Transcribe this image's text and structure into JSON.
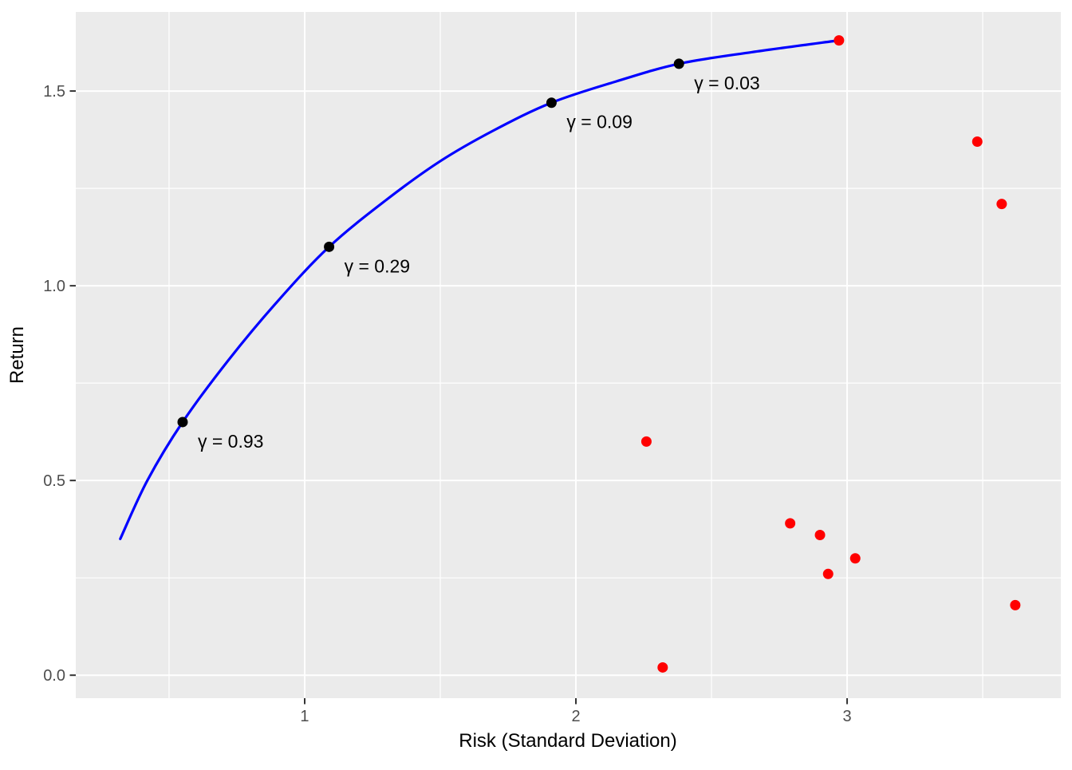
{
  "chart_data": {
    "type": "line+scatter",
    "title": "",
    "xlabel": "Risk (Standard Deviation)",
    "ylabel": "Return",
    "xlim": [
      0.156,
      3.788
    ],
    "ylim": [
      -0.059,
      1.703
    ],
    "grid": "on",
    "legend": "none",
    "x_major_ticks": {
      "values": [
        1,
        2,
        3
      ],
      "labels": [
        "1",
        "2",
        "3"
      ]
    },
    "y_major_ticks": {
      "values": [
        0,
        0.5,
        1.0,
        1.5
      ],
      "labels": [
        "0.0",
        "0.5",
        "1.0",
        "1.5"
      ]
    },
    "x_minor_ticks": [
      0.5,
      1.5,
      2.5,
      3.5
    ],
    "y_minor_ticks": [
      0.25,
      0.75,
      1.25
    ],
    "series": [
      {
        "name": "efficient-frontier-curve",
        "type": "line",
        "color": "#0000FF",
        "points": [
          [
            0.32,
            0.35
          ],
          [
            0.42,
            0.5
          ],
          [
            0.55,
            0.65
          ],
          [
            0.72,
            0.81
          ],
          [
            0.9,
            0.96
          ],
          [
            1.09,
            1.1
          ],
          [
            1.3,
            1.22
          ],
          [
            1.5,
            1.32
          ],
          [
            1.7,
            1.4
          ],
          [
            1.91,
            1.47
          ],
          [
            2.15,
            1.525
          ],
          [
            2.38,
            1.57
          ],
          [
            2.65,
            1.6
          ],
          [
            2.97,
            1.63
          ]
        ]
      },
      {
        "name": "gamma-points",
        "type": "scatter",
        "color": "#000000",
        "points": [
          [
            0.55,
            0.65
          ],
          [
            1.09,
            1.1
          ],
          [
            1.91,
            1.47
          ],
          [
            2.38,
            1.57
          ]
        ],
        "labels": [
          "γ = 0.93",
          "γ = 0.29",
          "γ = 0.09",
          "γ = 0.03"
        ]
      },
      {
        "name": "asset-points",
        "type": "scatter",
        "color": "#FF0000",
        "points": [
          [
            2.97,
            1.63
          ],
          [
            3.48,
            1.37
          ],
          [
            3.57,
            1.21
          ],
          [
            2.26,
            0.6
          ],
          [
            2.79,
            0.39
          ],
          [
            2.9,
            0.36
          ],
          [
            3.03,
            0.3
          ],
          [
            2.93,
            0.26
          ],
          [
            3.62,
            0.18
          ],
          [
            2.32,
            0.02
          ]
        ]
      }
    ],
    "colors": {
      "panel_background": "#EBEBEB",
      "gridline": "#FFFFFF",
      "tick_mark": "#333333",
      "tick_text": "#4D4D4D",
      "axis_title": "#000000",
      "curve": "#0000FF",
      "gamma_point": "#000000",
      "asset_point": "#FF0000"
    }
  }
}
